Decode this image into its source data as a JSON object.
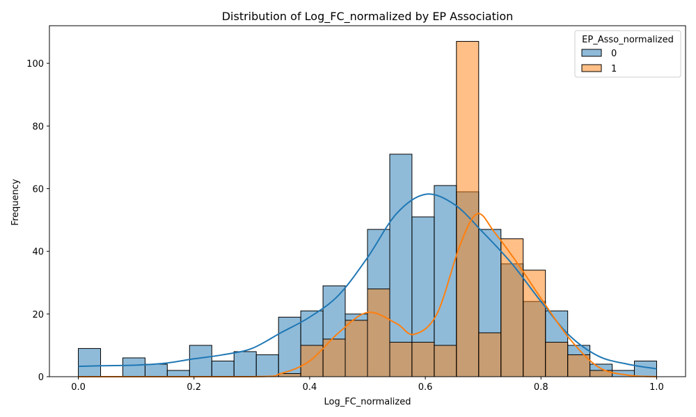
{
  "chart_data": {
    "type": "histogram",
    "title": "Distribution of Log_FC_normalized by EP Association",
    "xlabel": "Log_FC_normalized",
    "ylabel": "Frequency",
    "xlim": [
      -0.05,
      1.05
    ],
    "ylim": [
      0,
      112
    ],
    "x_ticks": [
      0.0,
      0.2,
      0.4,
      0.6,
      0.8,
      1.0
    ],
    "x_tick_labels": [
      "0.0",
      "0.2",
      "0.4",
      "0.6",
      "0.8",
      "1.0"
    ],
    "y_ticks": [
      0,
      20,
      40,
      60,
      80,
      100
    ],
    "y_tick_labels": [
      "0",
      "20",
      "40",
      "60",
      "80",
      "100"
    ],
    "grid": false,
    "bin_edges": [
      0.0,
      0.0385,
      0.0769,
      0.1154,
      0.1538,
      0.1923,
      0.2308,
      0.2692,
      0.3077,
      0.3462,
      0.3846,
      0.4231,
      0.4615,
      0.5,
      0.5385,
      0.5769,
      0.6154,
      0.6538,
      0.6923,
      0.7308,
      0.7692,
      0.8077,
      0.8462,
      0.8846,
      0.9231,
      0.9615,
      1.0
    ],
    "legend": {
      "title": "EP_Asso_normalized",
      "placement": "top-right"
    },
    "series": [
      {
        "name": "0",
        "color": "#1f77b4",
        "values": [
          9,
          0,
          6,
          4,
          2,
          10,
          5,
          8,
          7,
          19,
          21,
          29,
          20,
          47,
          71,
          51,
          61,
          59,
          47,
          36,
          24,
          21,
          10,
          4,
          2,
          5
        ],
        "kde": [
          [
            0.0,
            3.3
          ],
          [
            0.04,
            3.5
          ],
          [
            0.1,
            3.7
          ],
          [
            0.15,
            4.3
          ],
          [
            0.2,
            5.7
          ],
          [
            0.25,
            7
          ],
          [
            0.3,
            9
          ],
          [
            0.35,
            14
          ],
          [
            0.4,
            19
          ],
          [
            0.45,
            26
          ],
          [
            0.5,
            38
          ],
          [
            0.55,
            52
          ],
          [
            0.6,
            58.2
          ],
          [
            0.65,
            55
          ],
          [
            0.7,
            46
          ],
          [
            0.75,
            36
          ],
          [
            0.8,
            24
          ],
          [
            0.85,
            13
          ],
          [
            0.9,
            6.5
          ],
          [
            0.95,
            4
          ],
          [
            1.0,
            2.5
          ]
        ]
      },
      {
        "name": "1",
        "color": "#ff7f0e",
        "values": [
          0,
          0,
          0,
          0,
          0,
          0,
          0,
          0,
          0,
          1,
          10,
          12,
          18,
          28,
          11,
          11,
          10,
          107,
          14,
          44,
          34,
          11,
          7,
          2,
          0,
          0
        ],
        "kde": [
          [
            0.0,
            0
          ],
          [
            0.3,
            0
          ],
          [
            0.35,
            1
          ],
          [
            0.4,
            5
          ],
          [
            0.45,
            14
          ],
          [
            0.5,
            20.5
          ],
          [
            0.55,
            17
          ],
          [
            0.58,
            13.5
          ],
          [
            0.62,
            20
          ],
          [
            0.66,
            42
          ],
          [
            0.69,
            52
          ],
          [
            0.72,
            46
          ],
          [
            0.76,
            36
          ],
          [
            0.8,
            25
          ],
          [
            0.85,
            12
          ],
          [
            0.9,
            3
          ],
          [
            0.95,
            0.5
          ],
          [
            1.0,
            0
          ]
        ]
      }
    ]
  }
}
